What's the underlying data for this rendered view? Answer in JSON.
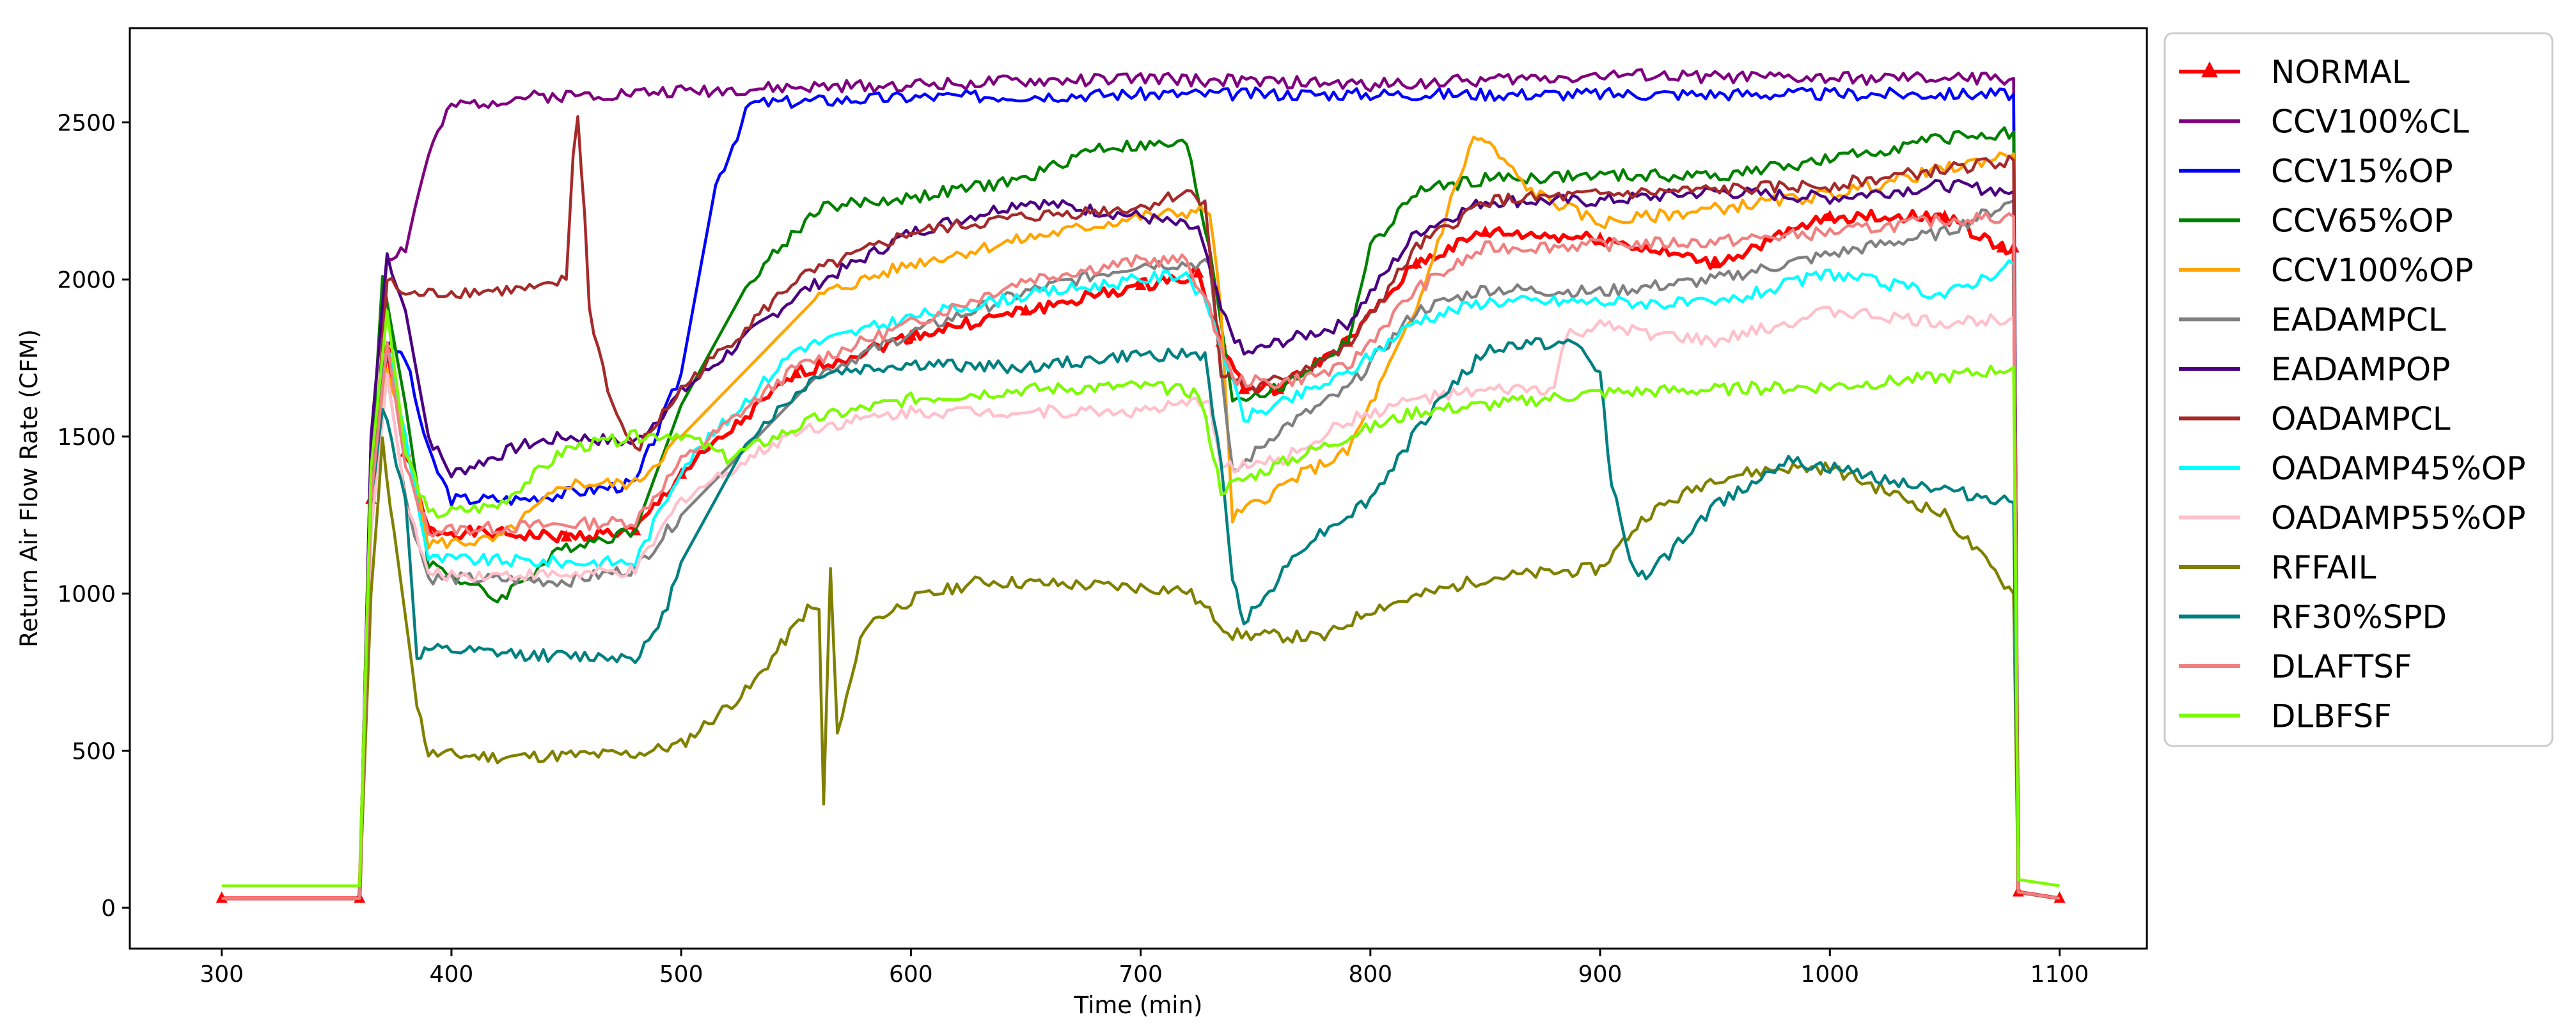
{
  "chart_data": {
    "type": "line",
    "title": "",
    "xlabel": "Time (min)",
    "ylabel": "Return Air Flow Rate (CFM)",
    "xlim": [
      260,
      1138
    ],
    "ylim": [
      -130,
      2800
    ],
    "xticks": [
      300,
      400,
      500,
      600,
      700,
      800,
      900,
      1000,
      1100
    ],
    "yticks": [
      0,
      500,
      1000,
      1500,
      2000,
      2500
    ],
    "grid": false,
    "legend_position": "outside-right",
    "series": [
      {
        "name": "NORMAL",
        "color": "#ff0000",
        "marker": "triangle",
        "x": [
          300,
          360,
          365,
          372,
          380,
          390,
          450,
          480,
          500,
          550,
          600,
          650,
          700,
          725,
          735,
          745,
          760,
          790,
          820,
          850,
          900,
          950,
          1000,
          1050,
          1075,
          1080,
          1082,
          1100
        ],
        "y": [
          30,
          30,
          1300,
          1780,
          1450,
          1200,
          1180,
          1200,
          1380,
          1700,
          1820,
          1900,
          1980,
          2020,
          1800,
          1650,
          1650,
          1800,
          2050,
          2150,
          2130,
          2050,
          2200,
          2200,
          2100,
          2100,
          50,
          30
        ]
      },
      {
        "name": "CCV100%CL",
        "color": "#7f007f",
        "x": [
          300,
          360,
          365,
          372,
          380,
          390,
          400,
          430,
          500,
          600,
          700,
          800,
          900,
          1000,
          1080,
          1082,
          1100
        ],
        "y": [
          30,
          30,
          1500,
          2070,
          2100,
          2400,
          2550,
          2580,
          2600,
          2620,
          2640,
          2620,
          2650,
          2640,
          2640,
          50,
          30
        ]
      },
      {
        "name": "CCV15%OP",
        "color": "#0000ff",
        "x": [
          300,
          360,
          365,
          372,
          380,
          390,
          400,
          430,
          480,
          500,
          515,
          530,
          600,
          700,
          800,
          900,
          1000,
          1080,
          1082,
          1100
        ],
        "y": [
          30,
          30,
          1400,
          1800,
          1750,
          1450,
          1300,
          1300,
          1350,
          1700,
          2300,
          2560,
          2580,
          2590,
          2590,
          2590,
          2590,
          2590,
          50,
          30
        ]
      },
      {
        "name": "CCV65%OP",
        "color": "#008000",
        "x": [
          300,
          360,
          365,
          370,
          380,
          390,
          420,
          450,
          480,
          500,
          530,
          560,
          600,
          650,
          680,
          720,
          730,
          740,
          760,
          790,
          800,
          820,
          850,
          900,
          950,
          1000,
          1050,
          1080,
          1082,
          1100
        ],
        "y": [
          30,
          30,
          1400,
          2010,
          1600,
          1100,
          980,
          1150,
          1200,
          1600,
          2000,
          2230,
          2260,
          2320,
          2420,
          2430,
          2100,
          1620,
          1650,
          1800,
          2100,
          2280,
          2320,
          2330,
          2330,
          2380,
          2450,
          2470,
          50,
          30
        ]
      },
      {
        "name": "CCV100%OP",
        "color": "#ffa500",
        "x": [
          300,
          360,
          365,
          372,
          380,
          390,
          420,
          450,
          480,
          500,
          560,
          600,
          650,
          700,
          730,
          735,
          740,
          770,
          790,
          800,
          820,
          835,
          845,
          850,
          870,
          900,
          1000,
          1080,
          1082,
          1100
        ],
        "y": [
          30,
          30,
          1300,
          1700,
          1500,
          1160,
          1170,
          1350,
          1350,
          1500,
          1950,
          2050,
          2130,
          2200,
          2220,
          1900,
          1240,
          1380,
          1450,
          1600,
          1900,
          2250,
          2450,
          2440,
          2280,
          2180,
          2270,
          2400,
          50,
          30
        ]
      },
      {
        "name": "EADAMPCL",
        "color": "#808080",
        "x": [
          300,
          360,
          365,
          372,
          380,
          390,
          450,
          480,
          500,
          560,
          600,
          650,
          700,
          730,
          740,
          760,
          790,
          820,
          850,
          900,
          950,
          1000,
          1050,
          1080,
          1082,
          1100
        ],
        "y": [
          30,
          30,
          1200,
          1700,
          1300,
          1050,
          1040,
          1080,
          1250,
          1700,
          1830,
          1960,
          2050,
          2050,
          1380,
          1520,
          1650,
          1900,
          1970,
          1960,
          2000,
          2080,
          2150,
          2250,
          50,
          30
        ]
      },
      {
        "name": "EADAMPOP",
        "color": "#4b0082",
        "x": [
          300,
          360,
          365,
          372,
          380,
          390,
          400,
          430,
          450,
          480,
          500,
          550,
          600,
          650,
          700,
          725,
          735,
          745,
          760,
          790,
          820,
          850,
          900,
          950,
          1000,
          1050,
          1080,
          1082,
          1100
        ],
        "y": [
          30,
          30,
          1500,
          2080,
          1900,
          1500,
          1380,
          1470,
          1500,
          1480,
          1640,
          1950,
          2150,
          2250,
          2200,
          2160,
          1900,
          1760,
          1800,
          1860,
          2150,
          2250,
          2250,
          2280,
          2260,
          2300,
          2280,
          50,
          30
        ]
      },
      {
        "name": "OADAMPCL",
        "color": "#a52a2a",
        "x": [
          300,
          360,
          365,
          372,
          380,
          400,
          440,
          450,
          453,
          455,
          458,
          460,
          470,
          480,
          500,
          550,
          600,
          650,
          700,
          720,
          728,
          735,
          750,
          790,
          820,
          850,
          900,
          1000,
          1080,
          1082,
          1100
        ],
        "y": [
          30,
          30,
          1300,
          2000,
          1950,
          1960,
          1970,
          2000,
          2400,
          2520,
          2200,
          1900,
          1600,
          1450,
          1650,
          2000,
          2150,
          2200,
          2230,
          2280,
          2250,
          1700,
          1650,
          1780,
          2100,
          2250,
          2270,
          2300,
          2380,
          50,
          30
        ]
      },
      {
        "name": "OADAMP45%OP",
        "color": "#00ffff",
        "x": [
          300,
          360,
          365,
          372,
          380,
          390,
          450,
          480,
          500,
          550,
          600,
          650,
          700,
          720,
          730,
          745,
          760,
          790,
          820,
          850,
          900,
          950,
          1000,
          1050,
          1080,
          1082,
          1100
        ],
        "y": [
          30,
          30,
          1300,
          1800,
          1500,
          1110,
          1100,
          1100,
          1400,
          1780,
          1880,
          1950,
          2000,
          2020,
          1900,
          1560,
          1600,
          1700,
          1870,
          1930,
          1930,
          1920,
          2020,
          1950,
          2050,
          50,
          30
        ]
      },
      {
        "name": "OADAMP55%OP",
        "color": "#ffc0cb",
        "x": [
          300,
          360,
          365,
          372,
          380,
          390,
          450,
          480,
          500,
          550,
          600,
          650,
          700,
          720,
          730,
          735,
          760,
          790,
          820,
          860,
          880,
          885,
          900,
          950,
          1000,
          1050,
          1080,
          1082,
          1100
        ],
        "y": [
          30,
          30,
          1200,
          1700,
          1300,
          1060,
          1060,
          1070,
          1300,
          1520,
          1580,
          1580,
          1580,
          1600,
          1620,
          1400,
          1420,
          1550,
          1620,
          1650,
          1650,
          1820,
          1850,
          1800,
          1900,
          1860,
          1880,
          50,
          30
        ]
      },
      {
        "name": "RFFAIL",
        "color": "#808000",
        "x": [
          300,
          360,
          365,
          370,
          375,
          385,
          390,
          420,
          480,
          500,
          530,
          555,
          560,
          562,
          565,
          568,
          580,
          600,
          630,
          700,
          720,
          740,
          780,
          800,
          850,
          900,
          920,
          950,
          980,
          1000,
          1050,
          1080,
          1082,
          1100
        ],
        "y": [
          30,
          30,
          1000,
          1480,
          1200,
          650,
          490,
          480,
          490,
          520,
          700,
          950,
          950,
          330,
          1080,
          550,
          900,
          980,
          1040,
          1020,
          1010,
          870,
          860,
          950,
          1050,
          1080,
          1250,
          1370,
          1400,
          1400,
          1250,
          1000,
          50,
          30
        ]
      },
      {
        "name": "RF30%SPD",
        "color": "#008080",
        "x": [
          300,
          360,
          365,
          370,
          380,
          385,
          390,
          450,
          480,
          490,
          500,
          530,
          560,
          600,
          650,
          700,
          728,
          735,
          740,
          745,
          750,
          770,
          800,
          830,
          850,
          870,
          890,
          900,
          905,
          915,
          920,
          950,
          980,
          1000,
          1050,
          1080,
          1082,
          1100
        ],
        "y": [
          30,
          30,
          1300,
          1600,
          1300,
          800,
          820,
          800,
          800,
          880,
          1100,
          1500,
          1700,
          1730,
          1720,
          1760,
          1760,
          1400,
          1050,
          920,
          950,
          1150,
          1300,
          1620,
          1770,
          1800,
          1790,
          1700,
          1350,
          1070,
          1050,
          1280,
          1420,
          1400,
          1330,
          1290,
          50,
          30
        ]
      },
      {
        "name": "DLAFTSF",
        "color": "#f08080",
        "x": [
          300,
          360,
          365,
          372,
          380,
          390,
          450,
          480,
          500,
          550,
          600,
          650,
          700,
          720,
          730,
          740,
          760,
          790,
          820,
          850,
          900,
          950,
          1000,
          1050,
          1080,
          1082,
          1100
        ],
        "y": [
          30,
          30,
          1300,
          1800,
          1400,
          1200,
          1220,
          1230,
          1420,
          1720,
          1860,
          2000,
          2060,
          2060,
          1900,
          1680,
          1670,
          1720,
          1970,
          2100,
          2110,
          2120,
          2150,
          2190,
          2200,
          50,
          30
        ]
      },
      {
        "name": "DLBFSF",
        "color": "#7cfc00",
        "x": [
          300,
          360,
          365,
          372,
          380,
          390,
          420,
          450,
          480,
          500,
          520,
          560,
          600,
          650,
          700,
          725,
          730,
          735,
          750,
          790,
          820,
          850,
          900,
          950,
          1000,
          1050,
          1080,
          1082,
          1100
        ],
        "y": [
          70,
          70,
          1400,
          1900,
          1450,
          1250,
          1280,
          1460,
          1500,
          1510,
          1430,
          1560,
          1620,
          1650,
          1660,
          1640,
          1500,
          1330,
          1380,
          1500,
          1580,
          1600,
          1640,
          1650,
          1660,
          1690,
          1720,
          90,
          70
        ]
      }
    ]
  }
}
